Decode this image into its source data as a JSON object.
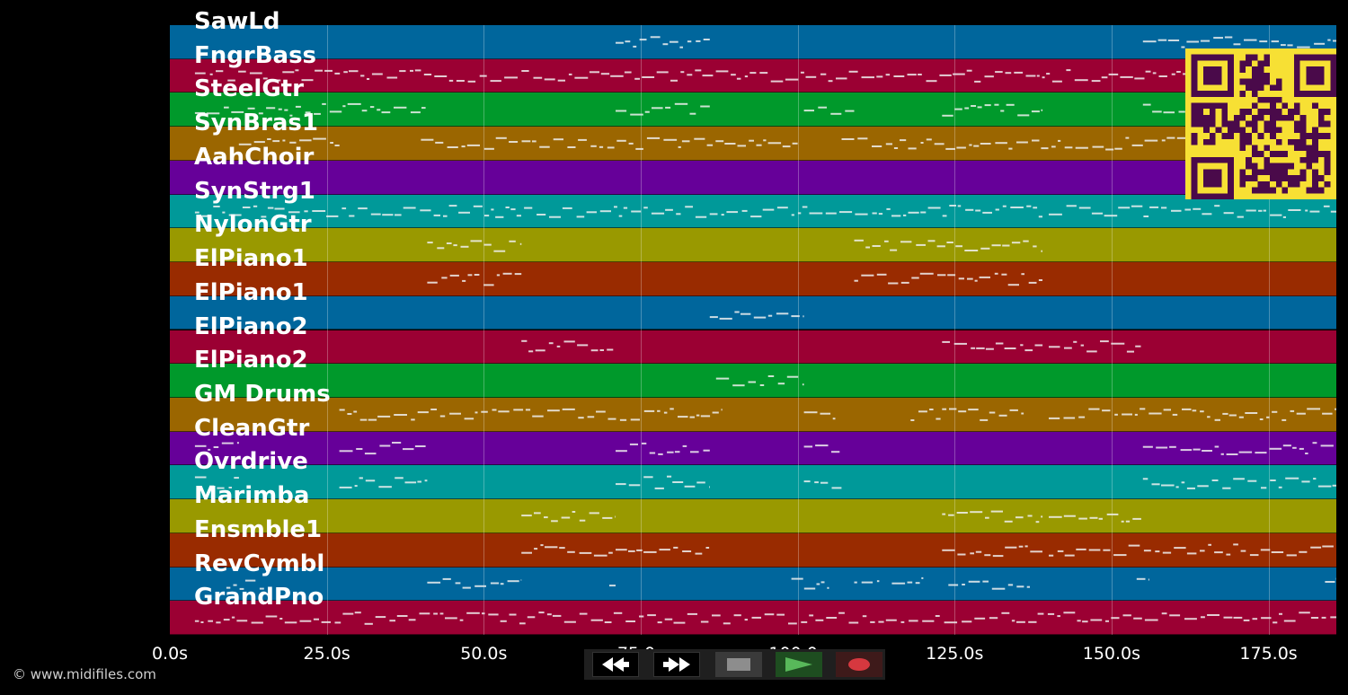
{
  "tracks": [
    {
      "label": "SawLd",
      "color": "#00669c"
    },
    {
      "label": "FngrBass",
      "color": "#9b0033"
    },
    {
      "label": "SteelGtr",
      "color": "#00992b"
    },
    {
      "label": "SynBras1",
      "color": "#9b6600"
    },
    {
      "label": "AahChoir",
      "color": "#660099"
    },
    {
      "label": "SynStrg1",
      "color": "#009999"
    },
    {
      "label": "NylonGtr",
      "color": "#999900"
    },
    {
      "label": "ElPiano1",
      "color": "#992b00"
    },
    {
      "label": "ElPiano1",
      "color": "#00669c"
    },
    {
      "label": "ElPiano2",
      "color": "#9b0033"
    },
    {
      "label": "ElPiano2",
      "color": "#00992b"
    },
    {
      "label": "GM Drums",
      "color": "#9b6600"
    },
    {
      "label": "CleanGtr",
      "color": "#660099"
    },
    {
      "label": "Ovrdrive",
      "color": "#009999"
    },
    {
      "label": "Marimba",
      "color": "#999900"
    },
    {
      "label": "Ensmble1",
      "color": "#992b00"
    },
    {
      "label": "RevCymbl",
      "color": "#00669c"
    },
    {
      "label": "GrandPno",
      "color": "#9b0033"
    }
  ],
  "timeline": {
    "max_seconds": 185.8,
    "grid_seconds": [
      25,
      50,
      75,
      100,
      125,
      150,
      175
    ],
    "ticks": [
      {
        "value": 0,
        "label": "0.0s"
      },
      {
        "value": 25,
        "label": "25.0s"
      },
      {
        "value": 50,
        "label": "50.0s"
      },
      {
        "value": 75,
        "label": "75.0s"
      },
      {
        "value": 100,
        "label": "100.0s"
      },
      {
        "value": 125,
        "label": "125.0s"
      },
      {
        "value": 150,
        "label": "150.0s"
      },
      {
        "value": 175,
        "label": "175.0s"
      }
    ]
  },
  "note_segments": [
    {
      "track": 0,
      "spans": [
        [
          71,
          86
        ],
        [
          155,
          185.8
        ]
      ]
    },
    {
      "track": 1,
      "spans": [
        [
          4,
          185.8
        ]
      ]
    },
    {
      "track": 2,
      "spans": [
        [
          4,
          41
        ],
        [
          71,
          86
        ],
        [
          101,
          109
        ],
        [
          123,
          139
        ],
        [
          155,
          185.8
        ]
      ]
    },
    {
      "track": 3,
      "spans": [
        [
          11,
          27
        ],
        [
          40,
          100
        ],
        [
          107,
          185.8
        ]
      ]
    },
    {
      "track": 5,
      "spans": [
        [
          4,
          139
        ],
        [
          140,
          185.8
        ]
      ]
    },
    {
      "track": 6,
      "spans": [
        [
          41,
          56
        ],
        [
          109,
          139
        ]
      ]
    },
    {
      "track": 7,
      "spans": [
        [
          41,
          56
        ],
        [
          109,
          139
        ]
      ]
    },
    {
      "track": 8,
      "spans": [
        [
          86,
          101
        ]
      ]
    },
    {
      "track": 9,
      "spans": [
        [
          56,
          71
        ],
        [
          123,
          139
        ],
        [
          140,
          155
        ]
      ]
    },
    {
      "track": 10,
      "spans": [
        [
          87,
          101
        ]
      ]
    },
    {
      "track": 11,
      "spans": [
        [
          27,
          88
        ],
        [
          101,
          106
        ],
        [
          118,
          123
        ],
        [
          123,
          136
        ],
        [
          140,
          185.8
        ]
      ]
    },
    {
      "track": 12,
      "spans": [
        [
          4,
          11
        ],
        [
          27,
          41
        ],
        [
          71,
          86
        ],
        [
          101,
          107
        ],
        [
          155,
          185.8
        ]
      ]
    },
    {
      "track": 13,
      "spans": [
        [
          4,
          11
        ],
        [
          27,
          41
        ],
        [
          71,
          86
        ],
        [
          101,
          107
        ],
        [
          155,
          185.8
        ]
      ]
    },
    {
      "track": 14,
      "spans": [
        [
          56,
          71
        ],
        [
          123,
          139
        ],
        [
          140,
          155
        ]
      ]
    },
    {
      "track": 15,
      "spans": [
        [
          56,
          86
        ],
        [
          123,
          139
        ],
        [
          140,
          185.8
        ]
      ]
    },
    {
      "track": 16,
      "spans": [
        [
          9,
          15
        ],
        [
          41,
          56
        ],
        [
          70,
          71
        ],
        [
          99,
          105
        ],
        [
          109,
          113
        ],
        [
          115,
          120
        ],
        [
          124,
          137
        ],
        [
          154,
          156
        ],
        [
          184,
          185.8
        ]
      ]
    },
    {
      "track": 17,
      "spans": [
        [
          4,
          185.8
        ]
      ]
    }
  ],
  "copyright": "© www.midifiles.com",
  "transport": {
    "rewind": "rewind-icon",
    "fast_forward": "fast-forward-icon",
    "stop": "stop-icon",
    "play": "play-icon",
    "record": "record-icon",
    "play_color": "#58b85a",
    "record_color": "#d6383f"
  },
  "qr": {
    "foreground": "#4a0a4a",
    "background": "#f7e034"
  }
}
